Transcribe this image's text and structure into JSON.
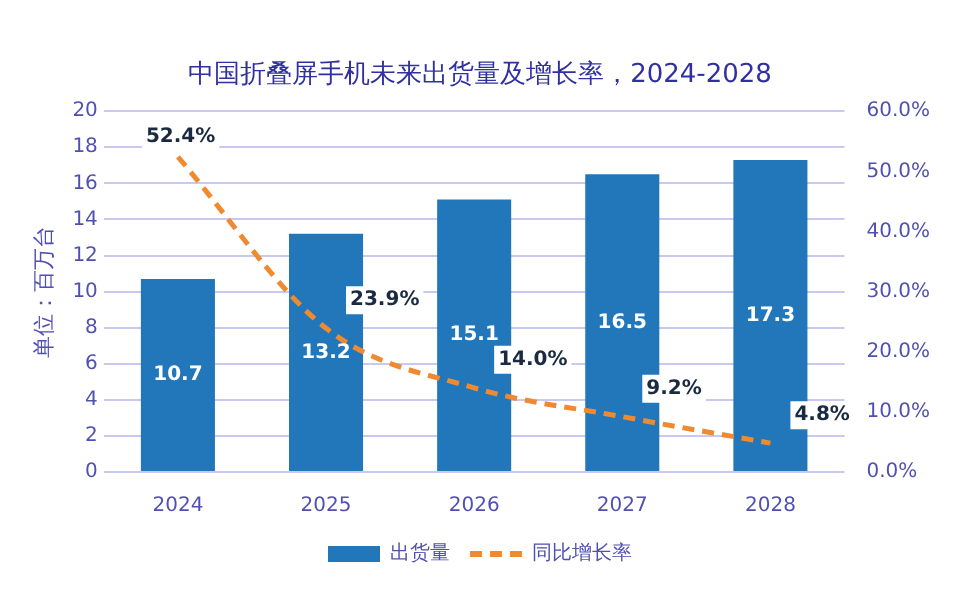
{
  "chart_data": {
    "type": "bar",
    "title": "中国折叠屏手机未来出货量及增长率，2024-2028",
    "categories": [
      "2024",
      "2025",
      "2026",
      "2027",
      "2028"
    ],
    "ylabel": "单位：百万台",
    "series": [
      {
        "name": "出货量",
        "color": "#2277bb",
        "values": [
          10.7,
          13.2,
          15.1,
          16.5,
          17.3
        ],
        "value_labels": [
          "10.7",
          "13.2",
          "15.1",
          "16.5",
          "17.3"
        ]
      },
      {
        "name": "同比增长率",
        "type": "line",
        "axis": "y2",
        "color": "#f08a30",
        "line_style": "dashed",
        "marker": "none",
        "values": [
          52.4,
          23.9,
          14.0,
          9.2,
          4.8
        ],
        "value_labels": [
          "52.4%",
          "23.9%",
          "14.0%",
          "9.2%",
          "4.8%"
        ]
      }
    ],
    "ylim": [
      0,
      20
    ],
    "yticks": [
      0,
      2,
      4,
      6,
      8,
      10,
      12,
      14,
      16,
      18,
      20
    ],
    "y2lim": [
      0,
      60
    ],
    "y2ticks": [
      {
        "value": 0,
        "label": "0.0%"
      },
      {
        "value": 10,
        "label": "10.0%"
      },
      {
        "value": 20,
        "label": "20.0%"
      },
      {
        "value": 30,
        "label": "30.0%"
      },
      {
        "value": 40,
        "label": "40.0%"
      },
      {
        "value": 50,
        "label": "50.0%"
      },
      {
        "value": 60,
        "label": "60.0%"
      }
    ],
    "grid": "y",
    "legend": "bottom"
  }
}
